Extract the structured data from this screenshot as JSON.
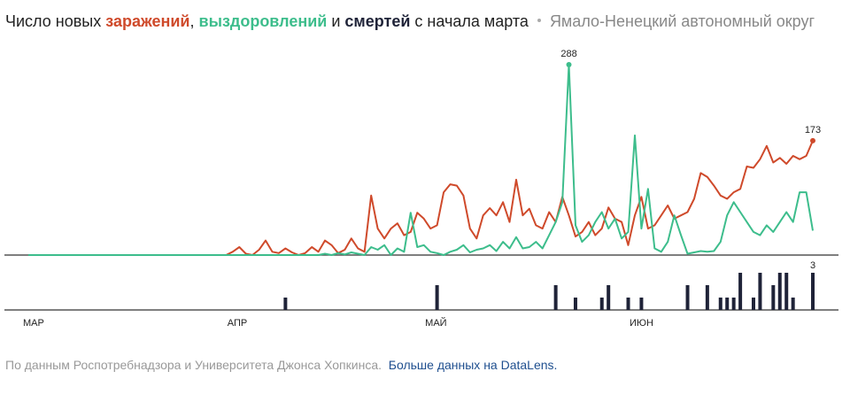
{
  "chart_data": {
    "type": "line",
    "title_parts": [
      "Число новых ",
      ", ",
      " и ",
      " с начала марта"
    ],
    "subtitle": "Ямало-Ненецкий автономный округ",
    "source": "По данным Роспотребнадзора и Университета Джонса Хопкинса.",
    "link": "Больше данных на DataLens.",
    "categories": [
      "МАР",
      null,
      null,
      null,
      null,
      null,
      null,
      null,
      null,
      null,
      null,
      null,
      null,
      null,
      null,
      null,
      null,
      null,
      null,
      null,
      null,
      null,
      null,
      null,
      null,
      null,
      null,
      null,
      null,
      null,
      null,
      "АПР",
      null,
      null,
      null,
      null,
      null,
      null,
      null,
      null,
      null,
      null,
      null,
      null,
      null,
      null,
      null,
      null,
      null,
      null,
      null,
      null,
      null,
      null,
      null,
      null,
      null,
      null,
      null,
      null,
      null,
      "МАЙ",
      null,
      null,
      null,
      null,
      null,
      null,
      null,
      null,
      null,
      null,
      null,
      null,
      null,
      null,
      null,
      null,
      null,
      null,
      null,
      null,
      null,
      null,
      null,
      null,
      null,
      null,
      null,
      null,
      null,
      null,
      "ИЮН",
      null,
      null,
      null,
      null,
      null,
      null,
      null,
      null,
      null,
      null,
      null,
      null,
      null,
      null,
      null,
      null,
      null,
      null,
      null,
      null,
      null,
      null,
      null,
      null,
      null,
      null,
      null
    ],
    "ylim": [
      0,
      288
    ],
    "y2lim": [
      0,
      3
    ],
    "series": [
      {
        "name": "заражений",
        "color": "#cf4a2b",
        "values": [
          0,
          0,
          0,
          0,
          0,
          0,
          0,
          0,
          0,
          0,
          0,
          0,
          0,
          0,
          0,
          0,
          0,
          0,
          0,
          0,
          0,
          0,
          0,
          0,
          0,
          0,
          0,
          0,
          0,
          0,
          0,
          5,
          12,
          2,
          0,
          8,
          22,
          5,
          3,
          10,
          4,
          0,
          3,
          12,
          5,
          22,
          15,
          3,
          8,
          25,
          10,
          5,
          90,
          40,
          25,
          40,
          48,
          30,
          35,
          64,
          55,
          40,
          45,
          95,
          107,
          105,
          90,
          40,
          25,
          60,
          71,
          60,
          80,
          50,
          114,
          60,
          70,
          45,
          40,
          65,
          50,
          88,
          60,
          28,
          35,
          50,
          30,
          40,
          72,
          55,
          50,
          15,
          60,
          88,
          40,
          45,
          60,
          75,
          55,
          60,
          65,
          85,
          124,
          118,
          105,
          90,
          85,
          95,
          100,
          134,
          132,
          145,
          165,
          140,
          147,
          138,
          150,
          145,
          150,
          173
        ]
      },
      {
        "name": "выздоровлений",
        "color": "#3dbd8c",
        "values": [
          0,
          0,
          0,
          0,
          0,
          0,
          0,
          0,
          0,
          0,
          0,
          0,
          0,
          0,
          0,
          0,
          0,
          0,
          0,
          0,
          0,
          0,
          0,
          0,
          0,
          0,
          0,
          0,
          0,
          0,
          0,
          0,
          0,
          0,
          0,
          0,
          0,
          0,
          0,
          0,
          0,
          0,
          0,
          0,
          0,
          2,
          0,
          3,
          1,
          4,
          2,
          0,
          12,
          8,
          15,
          0,
          10,
          5,
          64,
          12,
          15,
          5,
          3,
          0,
          5,
          8,
          15,
          4,
          8,
          10,
          15,
          6,
          20,
          10,
          27,
          10,
          12,
          20,
          10,
          30,
          50,
          80,
          288,
          45,
          20,
          30,
          50,
          65,
          40,
          55,
          25,
          35,
          181,
          40,
          100,
          10,
          5,
          20,
          60,
          30,
          2,
          4,
          6,
          5,
          6,
          20,
          60,
          80,
          65,
          50,
          35,
          30,
          45,
          35,
          50,
          65,
          50,
          95,
          95,
          37
        ]
      },
      {
        "name": "смертей",
        "color": "#1f2338",
        "type": "bar",
        "axis": "y2",
        "values": [
          0,
          0,
          0,
          0,
          0,
          0,
          0,
          0,
          0,
          0,
          0,
          0,
          0,
          0,
          0,
          0,
          0,
          0,
          0,
          0,
          0,
          0,
          0,
          0,
          0,
          0,
          0,
          0,
          0,
          0,
          0,
          0,
          0,
          0,
          0,
          0,
          0,
          0,
          0,
          1,
          0,
          0,
          0,
          0,
          0,
          0,
          0,
          0,
          0,
          0,
          0,
          0,
          0,
          0,
          0,
          0,
          0,
          0,
          0,
          0,
          0,
          0,
          2,
          0,
          0,
          0,
          0,
          0,
          0,
          0,
          0,
          0,
          0,
          0,
          0,
          0,
          0,
          0,
          0,
          0,
          2,
          0,
          0,
          1,
          0,
          0,
          0,
          1,
          2,
          0,
          0,
          1,
          0,
          1,
          0,
          0,
          0,
          0,
          0,
          0,
          2,
          0,
          0,
          2,
          0,
          1,
          1,
          1,
          3,
          0,
          1,
          3,
          0,
          2,
          3,
          3,
          1,
          0,
          0,
          3
        ]
      }
    ]
  }
}
